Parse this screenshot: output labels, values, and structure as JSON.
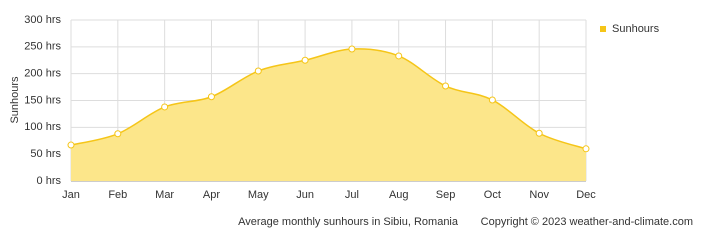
{
  "chart_data": {
    "type": "area",
    "y_label": "Sunhours",
    "caption": "Average monthly sunhours in Sibiu, Romania",
    "copyright": "Copyright © 2023  weather-and-climate.com",
    "categories": [
      "Jan",
      "Feb",
      "Mar",
      "Apr",
      "May",
      "Jun",
      "Jul",
      "Aug",
      "Sep",
      "Oct",
      "Nov",
      "Dec"
    ],
    "series": [
      {
        "name": "Sunhours",
        "color": "#f5c518",
        "fill": "#fce68a",
        "values": [
          67,
          88,
          138,
          157,
          205,
          225,
          246,
          233,
          177,
          151,
          89,
          60
        ]
      }
    ],
    "ylim": [
      0,
      300
    ],
    "yticks": [
      {
        "value": 0,
        "label": "0 hrs"
      },
      {
        "value": 50,
        "label": "50 hrs"
      },
      {
        "value": 100,
        "label": "100 hrs"
      },
      {
        "value": 150,
        "label": "150 hrs"
      },
      {
        "value": 200,
        "label": "200 hrs"
      },
      {
        "value": 250,
        "label": "250 hrs"
      },
      {
        "value": 300,
        "label": "300 hrs"
      }
    ],
    "grid": true,
    "legend": "right"
  }
}
